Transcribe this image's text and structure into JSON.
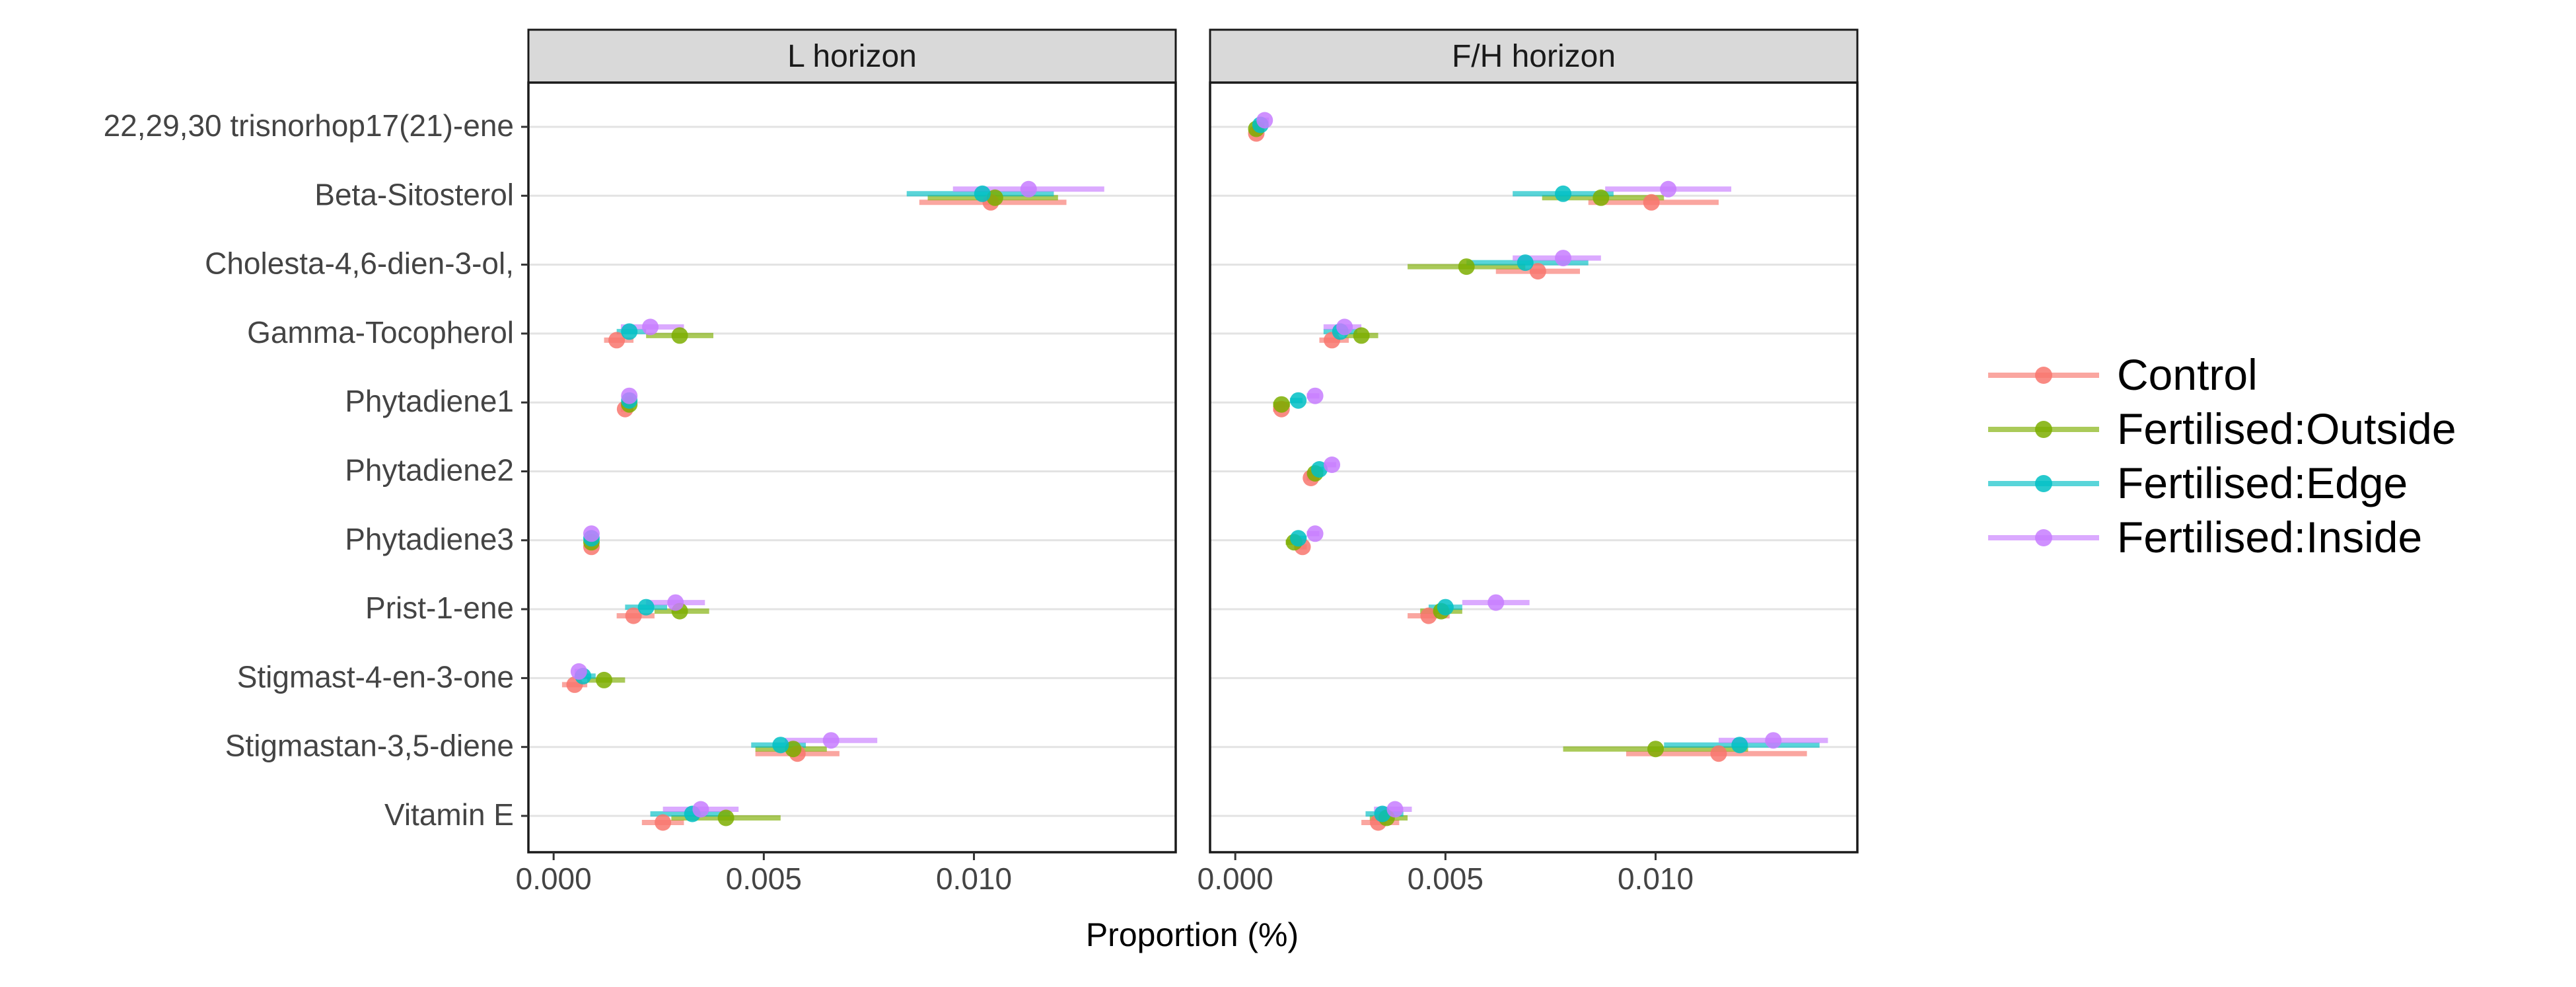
{
  "chart_data": {
    "type": "dot-errorbar",
    "xlabel": "Proportion (%)",
    "panels": [
      {
        "title": "L horizon"
      },
      {
        "title": "F/H horizon"
      }
    ],
    "categories": [
      "22,29,30 trisnorhop17(21)-ene",
      "Beta-Sitosterol",
      "Cholesta-4,6-dien-3-ol,",
      "Gamma-Tocopherol",
      "Phytadiene1",
      "Phytadiene2",
      "Phytadiene3",
      "Prist-1-ene",
      "Stigmast-4-en-3-one",
      "Stigmastan-3,5-diene",
      "Vitamin E"
    ],
    "xlim": [
      -0.0006,
      0.0148
    ],
    "xticks": [
      0.0,
      0.005,
      0.01
    ],
    "xtick_labels": [
      "0.000",
      "0.005",
      "0.010"
    ],
    "grid": "horizontal",
    "legend_position": "right",
    "series": [
      {
        "name": "Control",
        "color": "#F8766D",
        "L": [
          null,
          [
            0.0104,
            0.0087,
            0.0122
          ],
          null,
          [
            0.0015,
            0.0012,
            0.0019
          ],
          [
            0.0017,
            0.0016,
            0.0019
          ],
          null,
          [
            0.0009,
            0.0008,
            0.001
          ],
          [
            0.0019,
            0.0015,
            0.0024
          ],
          [
            0.0005,
            0.0002,
            0.0008
          ],
          [
            0.0058,
            0.0048,
            0.0068
          ],
          [
            0.0026,
            0.0021,
            0.0031
          ]
        ],
        "FH": [
          [
            0.0005,
            0.0004,
            0.0006
          ],
          [
            0.0099,
            0.0084,
            0.0115
          ],
          [
            0.0072,
            0.0062,
            0.0082
          ],
          [
            0.0023,
            0.002,
            0.0027
          ],
          [
            0.0011,
            0.0009,
            0.0012
          ],
          [
            0.0018,
            0.0017,
            0.002
          ],
          [
            0.0016,
            0.0014,
            0.0017
          ],
          [
            0.0046,
            0.0041,
            0.0051
          ],
          null,
          [
            0.0115,
            0.0093,
            0.0136
          ],
          [
            0.0034,
            0.003,
            0.0039
          ]
        ]
      },
      {
        "name": "Fertilised:Outside",
        "color": "#7CAE00",
        "L": [
          null,
          [
            0.0105,
            0.0089,
            0.012
          ],
          null,
          [
            0.003,
            0.0022,
            0.0038
          ],
          [
            0.0018,
            0.0016,
            0.0019
          ],
          null,
          [
            0.0009,
            0.0008,
            0.001
          ],
          [
            0.003,
            0.0024,
            0.0037
          ],
          [
            0.0012,
            0.0008,
            0.0017
          ],
          [
            0.0057,
            0.0048,
            0.0065
          ],
          [
            0.0041,
            0.0028,
            0.0054
          ]
        ],
        "FH": [
          [
            0.0005,
            0.0004,
            0.0006
          ],
          [
            0.0087,
            0.0073,
            0.0102
          ],
          [
            0.0055,
            0.0041,
            0.0069
          ],
          [
            0.003,
            0.0026,
            0.0034
          ],
          [
            0.0011,
            0.0009,
            0.0013
          ],
          [
            0.0019,
            0.0017,
            0.002
          ],
          [
            0.0014,
            0.0012,
            0.0016
          ],
          [
            0.0049,
            0.0044,
            0.0054
          ],
          null,
          [
            0.01,
            0.0078,
            0.0122
          ],
          [
            0.0036,
            0.0032,
            0.0041
          ]
        ]
      },
      {
        "name": "Fertilised:Edge",
        "color": "#00BFC4",
        "L": [
          null,
          [
            0.0102,
            0.0084,
            0.0119
          ],
          null,
          [
            0.0018,
            0.0015,
            0.0022
          ],
          [
            0.0018,
            0.0017,
            0.0019
          ],
          null,
          [
            0.0009,
            0.0008,
            0.0009
          ],
          [
            0.0022,
            0.0017,
            0.0027
          ],
          [
            0.0007,
            0.0005,
            0.001
          ],
          [
            0.0054,
            0.0047,
            0.006
          ],
          [
            0.0033,
            0.0023,
            0.0042
          ]
        ],
        "FH": [
          [
            0.0006,
            0.0005,
            0.0007
          ],
          [
            0.0078,
            0.0066,
            0.009
          ],
          [
            0.0069,
            0.0055,
            0.0084
          ],
          [
            0.0025,
            0.0021,
            0.0029
          ],
          [
            0.0015,
            0.0013,
            0.0016
          ],
          [
            0.002,
            0.0018,
            0.0021
          ],
          [
            0.0015,
            0.0013,
            0.0017
          ],
          [
            0.005,
            0.0046,
            0.0054
          ],
          null,
          [
            0.012,
            0.0102,
            0.0139
          ],
          [
            0.0035,
            0.0031,
            0.004
          ]
        ]
      },
      {
        "name": "Fertilised:Inside",
        "color": "#C77CFF",
        "L": [
          null,
          [
            0.0113,
            0.0095,
            0.0131
          ],
          null,
          [
            0.0023,
            0.0016,
            0.0031
          ],
          [
            0.0018,
            0.0017,
            0.0019
          ],
          null,
          [
            0.0009,
            0.0008,
            0.0009
          ],
          [
            0.0029,
            0.0022,
            0.0036
          ],
          [
            0.0006,
            0.0005,
            0.0008
          ],
          [
            0.0066,
            0.0055,
            0.0077
          ],
          [
            0.0035,
            0.0026,
            0.0044
          ]
        ],
        "FH": [
          [
            0.0007,
            0.0006,
            0.0008
          ],
          [
            0.0103,
            0.0088,
            0.0118
          ],
          [
            0.0078,
            0.0066,
            0.0087
          ],
          [
            0.0026,
            0.0021,
            0.003
          ],
          [
            0.0019,
            0.0017,
            0.002
          ],
          [
            0.0023,
            0.0021,
            0.0024
          ],
          [
            0.0019,
            0.0017,
            0.002
          ],
          [
            0.0062,
            0.0054,
            0.007
          ],
          null,
          [
            0.0128,
            0.0115,
            0.0141
          ],
          [
            0.0038,
            0.0033,
            0.0042
          ]
        ]
      }
    ]
  }
}
